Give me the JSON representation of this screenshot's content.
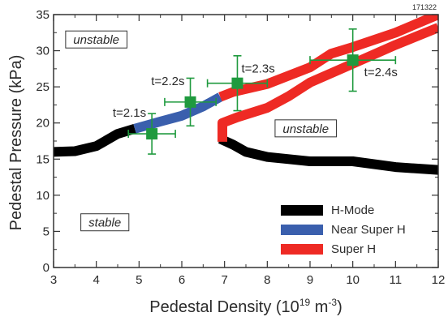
{
  "figure_id": "171322",
  "colors": {
    "h_mode": "#000000",
    "near_super_h": "#3a5fad",
    "super_h": "#ee2a24",
    "data_points": "#1f9a3e",
    "axis": "#333333"
  },
  "chart_data": {
    "type": "line",
    "xlabel_main": "Pedestal Density (10",
    "xlabel_sup1": "19",
    "xlabel_mid": " m",
    "xlabel_sup2": "-3",
    "xlabel_end": ")",
    "ylabel": "Pedestal Pressure (kPa)",
    "xlim": [
      3,
      12
    ],
    "ylim": [
      0,
      35
    ],
    "xticks": [
      3,
      4,
      5,
      6,
      7,
      8,
      9,
      10,
      11,
      12
    ],
    "yticks": [
      0,
      5,
      10,
      15,
      20,
      25,
      30,
      35
    ],
    "series": [
      {
        "name": "H-Mode",
        "color": "#000000",
        "segments": [
          [
            [
              3.0,
              16.0
            ],
            [
              3.5,
              16.1
            ],
            [
              4.0,
              16.8
            ],
            [
              4.5,
              18.5
            ],
            [
              4.9,
              19.2
            ]
          ],
          [
            [
              6.9,
              17.8
            ],
            [
              7.2,
              17.0
            ],
            [
              7.5,
              16.0
            ],
            [
              8.0,
              15.3
            ],
            [
              8.5,
              15.0
            ],
            [
              9.0,
              14.7
            ],
            [
              10.0,
              14.7
            ],
            [
              11.0,
              13.9
            ],
            [
              12.0,
              13.5
            ]
          ]
        ]
      },
      {
        "name": "Near Super H",
        "color": "#3a5fad",
        "segments": [
          [
            [
              4.9,
              19.2
            ],
            [
              5.5,
              20.2
            ],
            [
              6.0,
              21.0
            ],
            [
              6.5,
              22.3
            ],
            [
              6.9,
              23.6
            ]
          ]
        ]
      },
      {
        "name": "Super H",
        "color": "#ee2a24",
        "segments": [
          [
            [
              6.9,
              23.6
            ],
            [
              7.2,
              24.3
            ],
            [
              8.0,
              25.4
            ],
            [
              9.0,
              27.7
            ],
            [
              9.5,
              29.6
            ],
            [
              10.0,
              30.5
            ],
            [
              11.0,
              32.5
            ],
            [
              12.0,
              35.0
            ]
          ],
          [
            [
              6.95,
              17.4
            ],
            [
              6.95,
              20.0
            ],
            [
              7.3,
              20.8
            ],
            [
              8.0,
              22.1
            ],
            [
              8.5,
              23.7
            ],
            [
              9.0,
              25.6
            ],
            [
              10.0,
              28.2
            ],
            [
              11.0,
              30.8
            ],
            [
              12.0,
              33.2
            ]
          ]
        ]
      }
    ],
    "data_points": [
      {
        "label": "t=2.1s",
        "x": 5.3,
        "y": 18.5,
        "xerr": 0.55,
        "yerr": 2.8
      },
      {
        "label": "t=2.2s",
        "x": 6.2,
        "y": 22.9,
        "xerr": 0.6,
        "yerr": 3.3
      },
      {
        "label": "t=2.3s",
        "x": 7.3,
        "y": 25.5,
        "xerr": 0.7,
        "yerr": 3.8
      },
      {
        "label": "t=2.4s",
        "x": 10.0,
        "y": 28.7,
        "xerr": 1.0,
        "yerr": 4.3
      }
    ],
    "region_labels": [
      {
        "text": "unstable",
        "x": 4.0,
        "y": 31.5
      },
      {
        "text": "unstable",
        "x": 8.9,
        "y": 19.2
      },
      {
        "text": "stable",
        "x": 4.2,
        "y": 6.2
      }
    ],
    "legend_position": "bottom-right",
    "legend": [
      {
        "name": "H-Mode",
        "color": "#000000"
      },
      {
        "name": "Near Super H",
        "color": "#3a5fad"
      },
      {
        "name": "Super H",
        "color": "#ee2a24"
      }
    ],
    "grid": false
  }
}
